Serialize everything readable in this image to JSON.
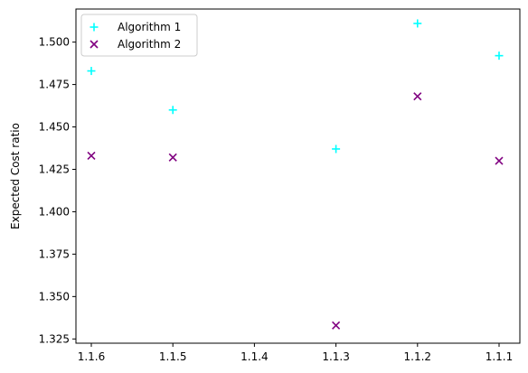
{
  "chart_data": {
    "type": "scatter",
    "title": "",
    "xlabel": "",
    "ylabel": "Expected Cost ratio",
    "categories": [
      "1.1.6",
      "1.1.5",
      "1.1.4",
      "1.1.3",
      "1.1.2",
      "1.1.1"
    ],
    "ylim": [
      1.325,
      1.52
    ],
    "y_ticks": [
      1.325,
      1.35,
      1.375,
      1.4,
      1.425,
      1.45,
      1.475,
      1.5
    ],
    "y_tick_labels": [
      "1.325",
      "1.350",
      "1.375",
      "1.400",
      "1.425",
      "1.450",
      "1.475",
      "1.500"
    ],
    "grid": false,
    "legend_position": "top-left",
    "series": [
      {
        "name": "Algorithm 1",
        "marker": "plus",
        "color": "#00ffff",
        "points": [
          {
            "x": "1.1.6",
            "y": 1.483
          },
          {
            "x": "1.1.5",
            "y": 1.46
          },
          {
            "x": "1.1.3",
            "y": 1.437
          },
          {
            "x": "1.1.2",
            "y": 1.511
          },
          {
            "x": "1.1.1",
            "y": 1.492
          }
        ]
      },
      {
        "name": "Algorithm 2",
        "marker": "x",
        "color": "#800080",
        "points": [
          {
            "x": "1.1.6",
            "y": 1.433
          },
          {
            "x": "1.1.5",
            "y": 1.432
          },
          {
            "x": "1.1.3",
            "y": 1.333
          },
          {
            "x": "1.1.2",
            "y": 1.468
          },
          {
            "x": "1.1.1",
            "y": 1.43
          }
        ]
      }
    ]
  }
}
